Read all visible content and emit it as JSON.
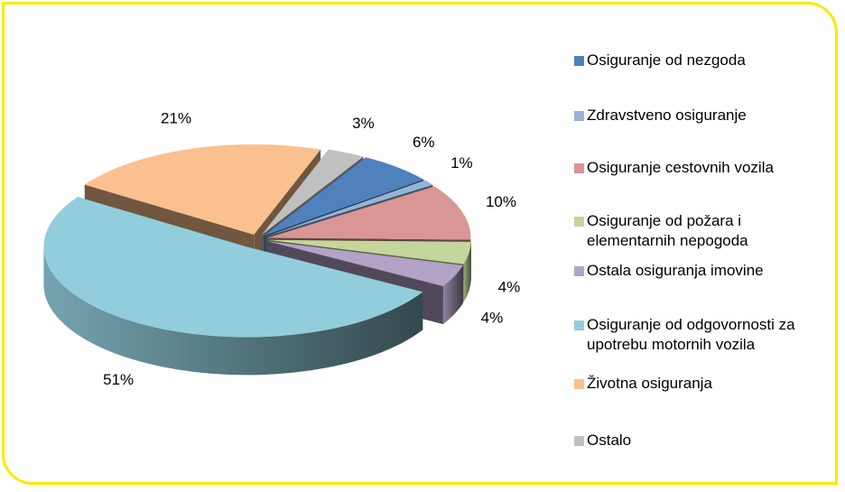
{
  "chart_data": {
    "type": "pie3d",
    "categories": [
      "Osiguranje od nezgoda",
      "Zdravstveno osiguranje",
      "Osiguranje cestovnih vozila",
      "Osiguranje od požara i elementarnih nepogoda",
      "Ostala osiguranja imovine",
      "Osiguranje od odgovornosti za upotrebu motornih vozila",
      "Životna osiguranja",
      "Ostalo"
    ],
    "values": [
      6,
      1,
      10,
      4,
      4,
      51,
      21,
      3
    ],
    "value_labels": [
      "6%",
      "1%",
      "10%",
      "4%",
      "4%",
      "51%",
      "21%",
      "3%"
    ],
    "colors": [
      "#4f81bd",
      "#95b3d7",
      "#d99694",
      "#c3d69b",
      "#b3a2c7",
      "#92cddc",
      "#fac08f",
      "#c0c0c0"
    ],
    "legend": "right"
  }
}
